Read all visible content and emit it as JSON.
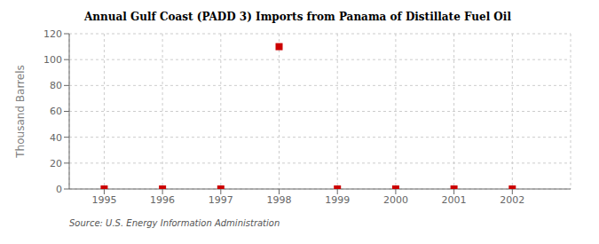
{
  "chart_data": {
    "type": "scatter",
    "title": "Annual Gulf Coast (PADD 3) Imports from Panama of Distillate Fuel Oil",
    "ylabel": "Thousand Barrels",
    "annotation": "Source: U.S. Energy Information Administration",
    "x": [
      1995,
      1996,
      1997,
      1998,
      1999,
      2000,
      2001,
      2002
    ],
    "values": [
      0,
      0,
      0,
      110,
      0,
      0,
      0,
      0
    ],
    "color": "#CC0000",
    "marker": "square",
    "xlim": [
      1994.4,
      2003.0
    ],
    "xticks": [
      1995,
      1996,
      1997,
      1998,
      1999,
      2000,
      2001,
      2002
    ],
    "ylim": [
      0,
      120
    ],
    "yticks": [
      0,
      20,
      40,
      60,
      80,
      100,
      120
    ],
    "grid": true
  }
}
